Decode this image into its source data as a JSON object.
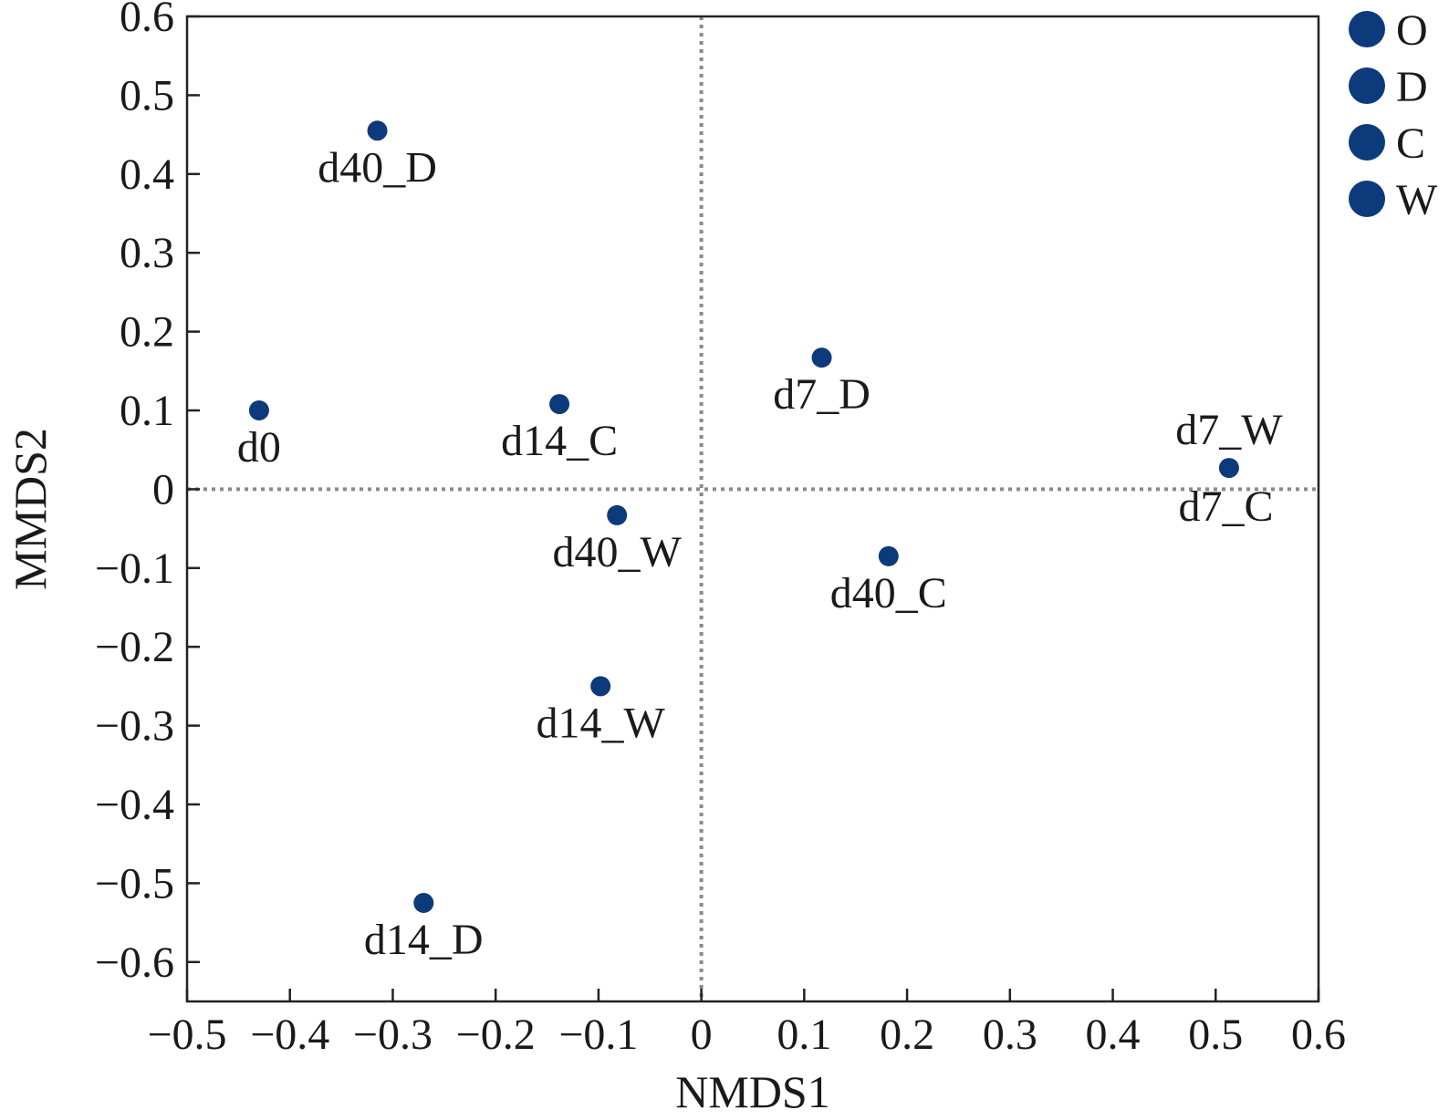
{
  "chart_data": {
    "type": "scatter",
    "title": "",
    "xlabel": "NMDS1",
    "ylabel": "MMDS2",
    "xlim": [
      -0.5,
      0.6
    ],
    "ylim": [
      -0.65,
      0.6
    ],
    "x_ticks": [
      -0.5,
      -0.4,
      -0.3,
      -0.2,
      -0.1,
      0,
      0.1,
      0.2,
      0.3,
      0.4,
      0.5,
      0.6
    ],
    "y_ticks": [
      -0.6,
      -0.5,
      -0.4,
      -0.3,
      -0.2,
      -0.1,
      0,
      0.1,
      0.2,
      0.3,
      0.4,
      0.5,
      0.6
    ],
    "x_tick_labels": [
      "−0.5",
      "−0.4",
      "−0.3",
      "−0.2",
      "−0.1",
      "0",
      "0.1",
      "0.2",
      "0.3",
      "0.4",
      "0.5",
      "0.6"
    ],
    "y_tick_labels": [
      "−0.6",
      "−0.5",
      "−0.4",
      "−0.3",
      "−0.2",
      "−0.1",
      "0",
      "0.1",
      "0.2",
      "0.3",
      "0.4",
      "0.5",
      "0.6"
    ],
    "reference_lines": {
      "x": 0,
      "y": 0,
      "style": "dotted"
    },
    "grid": false,
    "legend_position": "top-right, outside",
    "legend": [
      "O",
      "D",
      "C",
      "W"
    ],
    "marker_color": "#0d3a7a",
    "points": [
      {
        "label": "d0",
        "x": -0.43,
        "y": 0.1,
        "label_pos": "below"
      },
      {
        "label": "d40_D",
        "x": -0.315,
        "y": 0.455,
        "label_pos": "below"
      },
      {
        "label": "d14_C",
        "x": -0.138,
        "y": 0.108,
        "label_pos": "below"
      },
      {
        "label": "d40_W",
        "x": -0.082,
        "y": -0.033,
        "label_pos": "below"
      },
      {
        "label": "d14_W",
        "x": -0.098,
        "y": -0.25,
        "label_pos": "below"
      },
      {
        "label": "d14_D",
        "x": -0.27,
        "y": -0.525,
        "label_pos": "below"
      },
      {
        "label": "d7_D",
        "x": 0.117,
        "y": 0.167,
        "label_pos": "below"
      },
      {
        "label": "d40_C",
        "x": 0.182,
        "y": -0.085,
        "label_pos": "below"
      },
      {
        "label": "d7_W",
        "x": 0.513,
        "y": 0.027,
        "label_pos": "above"
      },
      {
        "label": "d7_C",
        "x": 0.51,
        "y": 0.025,
        "label_pos": "below"
      }
    ]
  }
}
